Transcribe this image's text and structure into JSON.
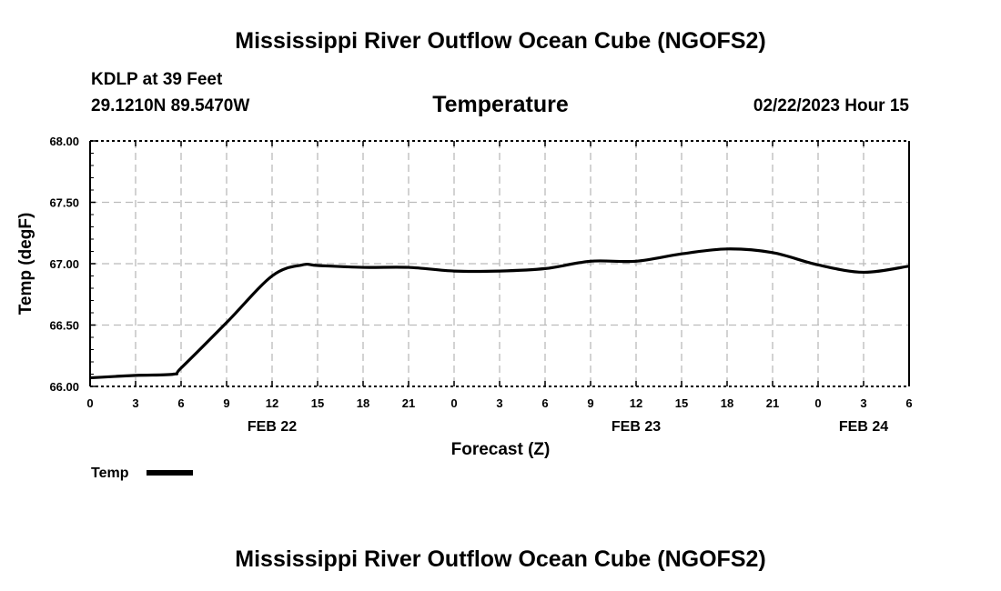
{
  "header": {
    "title": "Mississippi River Outflow Ocean Cube (NGOFS2)",
    "station": "KDLP at 39 Feet",
    "coords": "29.1210N  89.5470W",
    "subtitle": "Temperature",
    "datetime": "02/22/2023 Hour 15"
  },
  "footer": {
    "title": "Mississippi River Outflow Ocean Cube (NGOFS2)"
  },
  "chart_data": {
    "type": "line",
    "title": "Temperature",
    "xlabel": "Forecast (Z)",
    "ylabel": "Temp (degF)",
    "ylim": [
      66.0,
      68.0
    ],
    "xlim": [
      0,
      54
    ],
    "yticks": [
      "66.00",
      "66.50",
      "67.00",
      "67.50",
      "68.00"
    ],
    "ytick_values": [
      66.0,
      66.5,
      67.0,
      67.5,
      68.0
    ],
    "xtick_labels": [
      "0",
      "3",
      "6",
      "9",
      "12",
      "15",
      "18",
      "21",
      "0",
      "3",
      "6",
      "9",
      "12",
      "15",
      "18",
      "21",
      "0",
      "3",
      "6"
    ],
    "day_labels": [
      {
        "label": "FEB 22",
        "hour": 12
      },
      {
        "label": "FEB 23",
        "hour": 36
      },
      {
        "label": "FEB 24",
        "hour": 51
      }
    ],
    "grid": true,
    "legend": {
      "label": "Temp",
      "placement": "bottom-left"
    },
    "series": [
      {
        "name": "Temp",
        "color": "#000000",
        "x": [
          0,
          3,
          5.5,
          6,
          9,
          12,
          14,
          15,
          18,
          21,
          24,
          27,
          30,
          33,
          36,
          39,
          42,
          45,
          48,
          51,
          54
        ],
        "y": [
          66.07,
          66.09,
          66.1,
          66.15,
          66.52,
          66.9,
          66.99,
          66.985,
          66.97,
          66.97,
          66.94,
          66.94,
          66.96,
          67.02,
          67.02,
          67.08,
          67.12,
          67.09,
          66.99,
          66.93,
          66.98
        ]
      }
    ]
  }
}
